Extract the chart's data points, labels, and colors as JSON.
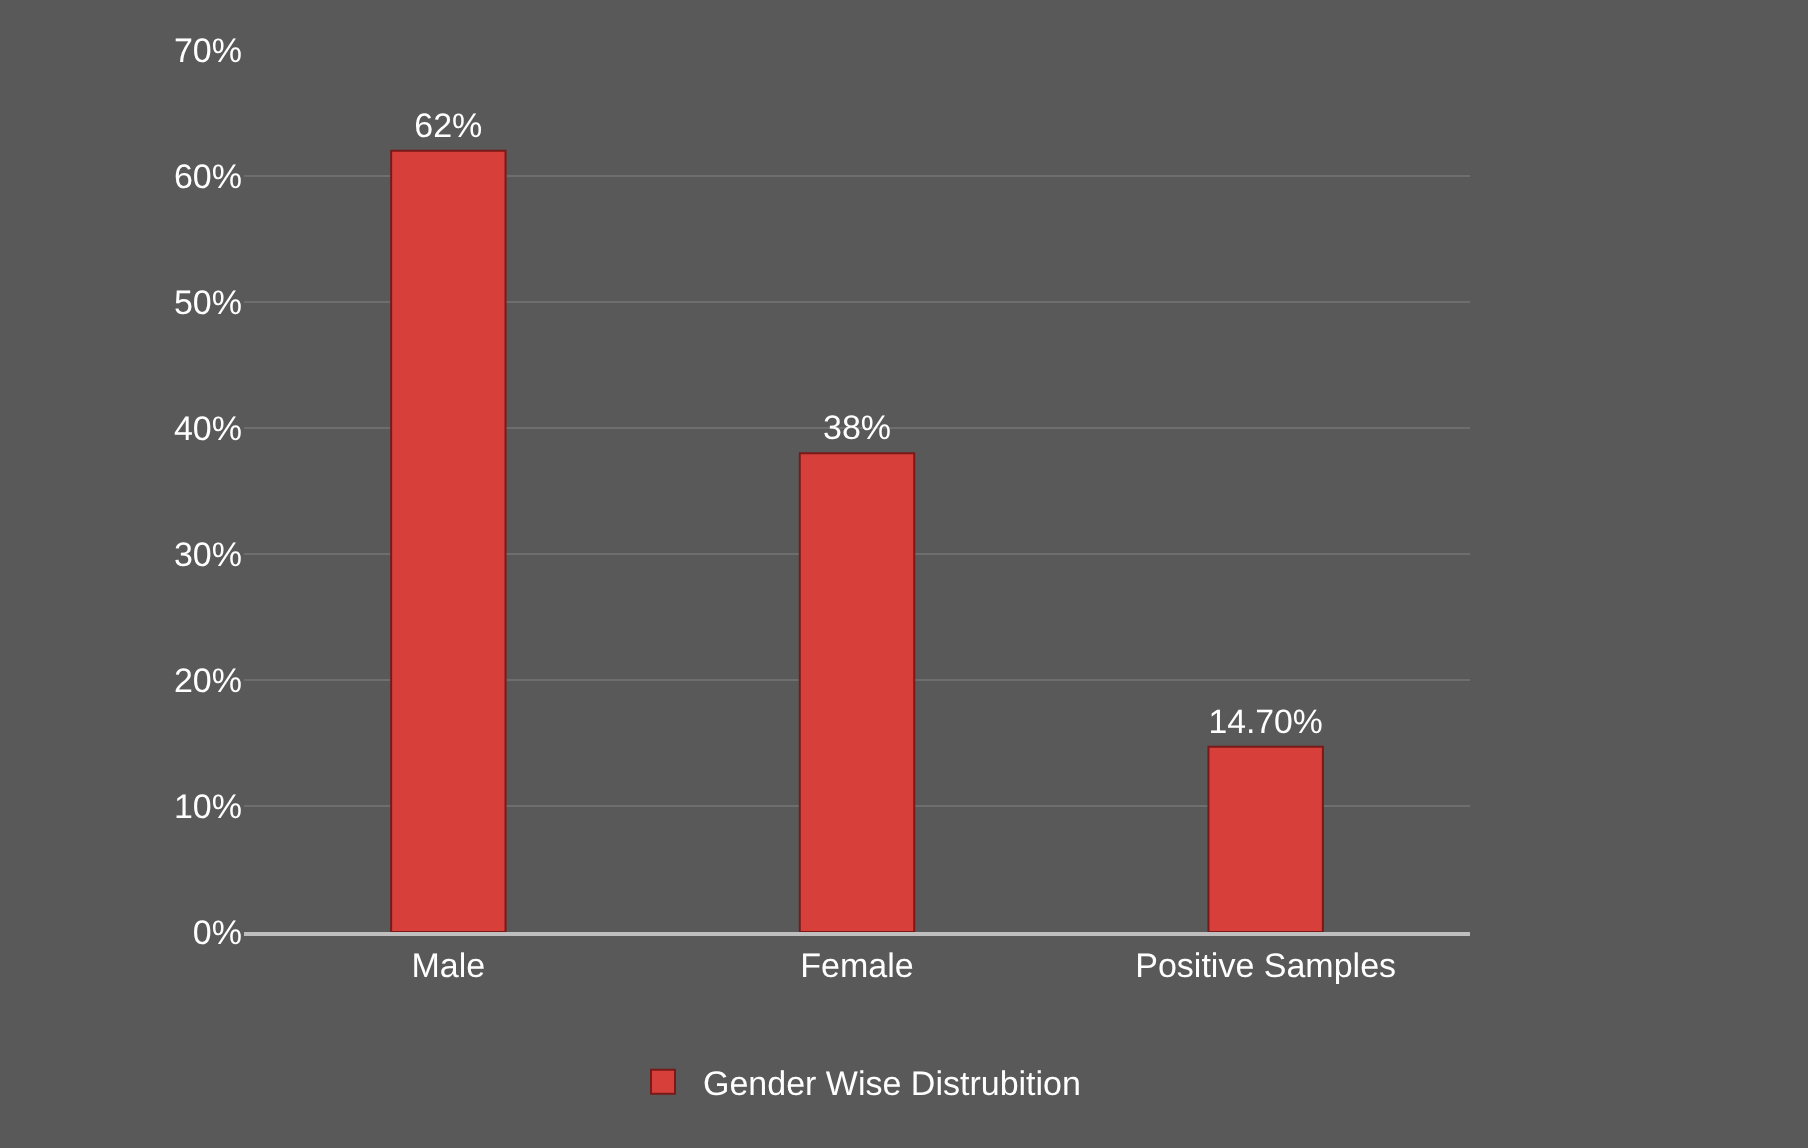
{
  "chart_data": {
    "type": "bar",
    "categories": [
      "Male",
      "Female",
      "Positive Samples"
    ],
    "series": [
      {
        "name": "Gender Wise Distrubition",
        "color": "#d63f3a",
        "values": [
          62,
          38,
          14.7
        ],
        "value_labels": [
          "62%",
          "38%",
          "14.70%"
        ]
      }
    ],
    "ylim": [
      0,
      70
    ],
    "yticks": [
      {
        "value": 0,
        "label": "0%"
      },
      {
        "value": 10,
        "label": "10%"
      },
      {
        "value": 20,
        "label": "20%"
      },
      {
        "value": 30,
        "label": "30%"
      },
      {
        "value": 40,
        "label": "40%"
      },
      {
        "value": 50,
        "label": "50%"
      },
      {
        "value": 60,
        "label": "60%"
      },
      {
        "value": 70,
        "label": "70%"
      }
    ],
    "grid": "y",
    "legend": "bottom"
  }
}
